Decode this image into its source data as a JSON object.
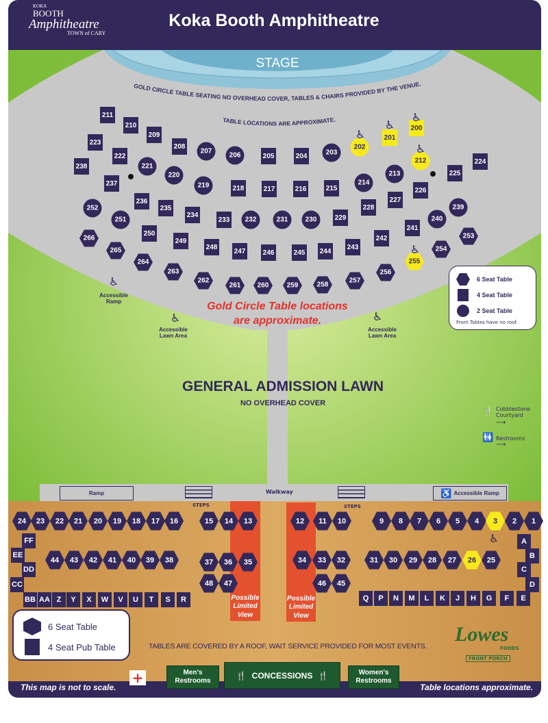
{
  "header": {
    "title": "Koka Booth Amphitheatre",
    "logo": {
      "koka": "KOKA",
      "booth": "BOOTH",
      "amph": "Amphitheatre",
      "town": "TOWN of CARY"
    }
  },
  "colors": {
    "navy": "#33285a",
    "accessible_yellow": "#f7ea1c",
    "lawn_green": "#8cc63f",
    "seating_gray": "#c8c8c8",
    "stage_blue": "#8fc3d8",
    "deck_wood": "#d8a35a",
    "limited_view_red": "#e4512f",
    "concessions_green": "#1f5a2f"
  },
  "stage": {
    "label": "STAGE"
  },
  "gold_circle": {
    "arc_text": "GOLD CIRCLE TABLE SEATING NO OVERHEAD COVER, TABLES & CHAIRS PROVIDED BY THE VENUE.",
    "arc_text2": "TABLE LOCATIONS ARE APPROXIMATE.",
    "notice_line1": "Gold Circle Table locations",
    "notice_line2": "are approximate.",
    "accessible_ramp": "Accessible Ramp",
    "accessible_lawn_left": "Accessible Lawn Area",
    "accessible_lawn_right": "Accessible Lawn Area",
    "tables": [
      {
        "label": "211",
        "shape": "square"
      },
      {
        "label": "210",
        "shape": "square"
      },
      {
        "label": "209",
        "shape": "square"
      },
      {
        "label": "223",
        "shape": "square"
      },
      {
        "label": "208",
        "shape": "square"
      },
      {
        "label": "207",
        "shape": "circle"
      },
      {
        "label": "206",
        "shape": "circle"
      },
      {
        "label": "205",
        "shape": "square"
      },
      {
        "label": "204",
        "shape": "square"
      },
      {
        "label": "203",
        "shape": "circle"
      },
      {
        "label": "202",
        "shape": "circle",
        "accessible": true
      },
      {
        "label": "201",
        "shape": "square",
        "accessible": true
      },
      {
        "label": "200",
        "shape": "square",
        "accessible": true
      },
      {
        "label": "212",
        "shape": "circle",
        "accessible": true
      },
      {
        "label": "224",
        "shape": "square"
      },
      {
        "label": "222",
        "shape": "square"
      },
      {
        "label": "238",
        "shape": "square"
      },
      {
        "label": "221",
        "shape": "circle"
      },
      {
        "label": "220",
        "shape": "circle"
      },
      {
        "label": "237",
        "shape": "square"
      },
      {
        "label": "219",
        "shape": "circle"
      },
      {
        "label": "218",
        "shape": "square"
      },
      {
        "label": "217",
        "shape": "square"
      },
      {
        "label": "216",
        "shape": "square"
      },
      {
        "label": "215",
        "shape": "square"
      },
      {
        "label": "214",
        "shape": "circle"
      },
      {
        "label": "213",
        "shape": "circle"
      },
      {
        "label": "225",
        "shape": "square"
      },
      {
        "label": "226",
        "shape": "square"
      },
      {
        "label": "227",
        "shape": "square"
      },
      {
        "label": "228",
        "shape": "square"
      },
      {
        "label": "236",
        "shape": "square"
      },
      {
        "label": "252",
        "shape": "circle"
      },
      {
        "label": "235",
        "shape": "square"
      },
      {
        "label": "234",
        "shape": "square"
      },
      {
        "label": "233",
        "shape": "square"
      },
      {
        "label": "232",
        "shape": "circle"
      },
      {
        "label": "231",
        "shape": "circle"
      },
      {
        "label": "230",
        "shape": "circle"
      },
      {
        "label": "229",
        "shape": "square"
      },
      {
        "label": "239",
        "shape": "circle"
      },
      {
        "label": "240",
        "shape": "circle"
      },
      {
        "label": "241",
        "shape": "square"
      },
      {
        "label": "251",
        "shape": "circle"
      },
      {
        "label": "250",
        "shape": "square"
      },
      {
        "label": "249",
        "shape": "square"
      },
      {
        "label": "248",
        "shape": "square"
      },
      {
        "label": "247",
        "shape": "square"
      },
      {
        "label": "246",
        "shape": "square"
      },
      {
        "label": "245",
        "shape": "square"
      },
      {
        "label": "244",
        "shape": "square"
      },
      {
        "label": "243",
        "shape": "square"
      },
      {
        "label": "242",
        "shape": "square"
      },
      {
        "label": "253",
        "shape": "hex"
      },
      {
        "label": "266",
        "shape": "hex"
      },
      {
        "label": "265",
        "shape": "hex"
      },
      {
        "label": "264",
        "shape": "hex"
      },
      {
        "label": "263",
        "shape": "hex"
      },
      {
        "label": "262",
        "shape": "hex"
      },
      {
        "label": "261",
        "shape": "hex"
      },
      {
        "label": "260",
        "shape": "hex"
      },
      {
        "label": "259",
        "shape": "hex"
      },
      {
        "label": "258",
        "shape": "hex"
      },
      {
        "label": "257",
        "shape": "hex"
      },
      {
        "label": "256",
        "shape": "hex"
      },
      {
        "label": "255",
        "shape": "hex",
        "accessible": true
      },
      {
        "label": "254",
        "shape": "hex"
      }
    ],
    "legend": {
      "six": "6 Seat Table",
      "four": "4 Seat Table",
      "two": "2 Seat Table",
      "note": "Front Tables have no roof."
    }
  },
  "lawn": {
    "title": "GENERAL ADMISSION LAWN",
    "subtitle": "NO OVERHEAD COVER",
    "cobblestone": "Cobblestone Courtyard",
    "restrooms": "Restrooms"
  },
  "walkway": {
    "label": "Walkway",
    "ramp": "Ramp",
    "accessible_ramp": "Accessible Ramp",
    "steps_left": "STEPS",
    "steps_right": "STEPS"
  },
  "covered": {
    "limited_view": "Possible Limited View",
    "tables": [
      {
        "label": "24",
        "shape": "hex"
      },
      {
        "label": "23",
        "shape": "hex"
      },
      {
        "label": "22",
        "shape": "hex"
      },
      {
        "label": "21",
        "shape": "hex"
      },
      {
        "label": "20",
        "shape": "hex"
      },
      {
        "label": "19",
        "shape": "hex"
      },
      {
        "label": "18",
        "shape": "hex"
      },
      {
        "label": "17",
        "shape": "hex"
      },
      {
        "label": "16",
        "shape": "hex"
      },
      {
        "label": "15",
        "shape": "hex"
      },
      {
        "label": "14",
        "shape": "hex"
      },
      {
        "label": "13",
        "shape": "hex"
      },
      {
        "label": "12",
        "shape": "hex"
      },
      {
        "label": "11",
        "shape": "hex"
      },
      {
        "label": "10",
        "shape": "hex"
      },
      {
        "label": "9",
        "shape": "hex"
      },
      {
        "label": "8",
        "shape": "hex"
      },
      {
        "label": "7",
        "shape": "hex"
      },
      {
        "label": "6",
        "shape": "hex"
      },
      {
        "label": "5",
        "shape": "hex"
      },
      {
        "label": "4",
        "shape": "hex"
      },
      {
        "label": "3",
        "shape": "hex",
        "accessible": true
      },
      {
        "label": "2",
        "shape": "hex"
      },
      {
        "label": "1",
        "shape": "hex"
      },
      {
        "label": "44",
        "shape": "hex"
      },
      {
        "label": "43",
        "shape": "hex"
      },
      {
        "label": "42",
        "shape": "hex"
      },
      {
        "label": "41",
        "shape": "hex"
      },
      {
        "label": "40",
        "shape": "hex"
      },
      {
        "label": "39",
        "shape": "hex"
      },
      {
        "label": "38",
        "shape": "hex"
      },
      {
        "label": "37",
        "shape": "hex"
      },
      {
        "label": "36",
        "shape": "hex"
      },
      {
        "label": "35",
        "shape": "hex"
      },
      {
        "label": "34",
        "shape": "hex"
      },
      {
        "label": "33",
        "shape": "hex"
      },
      {
        "label": "32",
        "shape": "hex"
      },
      {
        "label": "31",
        "shape": "hex"
      },
      {
        "label": "30",
        "shape": "hex"
      },
      {
        "label": "29",
        "shape": "hex"
      },
      {
        "label": "28",
        "shape": "hex"
      },
      {
        "label": "27",
        "shape": "hex"
      },
      {
        "label": "26",
        "shape": "hex",
        "accessible": true
      },
      {
        "label": "25",
        "shape": "hex"
      },
      {
        "label": "48",
        "shape": "hex"
      },
      {
        "label": "47",
        "shape": "hex"
      },
      {
        "label": "46",
        "shape": "hex"
      },
      {
        "label": "45",
        "shape": "hex"
      },
      {
        "label": "FF",
        "shape": "square"
      },
      {
        "label": "EE",
        "shape": "square"
      },
      {
        "label": "DD",
        "shape": "square"
      },
      {
        "label": "CC",
        "shape": "square"
      },
      {
        "label": "BB",
        "shape": "square"
      },
      {
        "label": "AA",
        "shape": "square"
      },
      {
        "label": "Z",
        "shape": "square"
      },
      {
        "label": "Y",
        "shape": "square"
      },
      {
        "label": "X",
        "shape": "square"
      },
      {
        "label": "W",
        "shape": "square"
      },
      {
        "label": "V",
        "shape": "square"
      },
      {
        "label": "U",
        "shape": "square"
      },
      {
        "label": "T",
        "shape": "square"
      },
      {
        "label": "S",
        "shape": "square"
      },
      {
        "label": "R",
        "shape": "square"
      },
      {
        "label": "Q",
        "shape": "square"
      },
      {
        "label": "P",
        "shape": "square"
      },
      {
        "label": "N",
        "shape": "square"
      },
      {
        "label": "M",
        "shape": "square"
      },
      {
        "label": "L",
        "shape": "square"
      },
      {
        "label": "K",
        "shape": "square"
      },
      {
        "label": "J",
        "shape": "square"
      },
      {
        "label": "H",
        "shape": "square"
      },
      {
        "label": "G",
        "shape": "square"
      },
      {
        "label": "F",
        "shape": "square"
      },
      {
        "label": "E",
        "shape": "square"
      },
      {
        "label": "A",
        "shape": "square"
      },
      {
        "label": "B",
        "shape": "square"
      },
      {
        "label": "C",
        "shape": "square"
      },
      {
        "label": "D",
        "shape": "square"
      }
    ],
    "legend": {
      "six": "6 Seat Table",
      "four": "4 Seat Pub Table"
    },
    "roof_note": "TABLES ARE COVERED BY A ROOF, WAIT SERVICE PROVIDED FOR MOST EVENTS.",
    "sponsor": {
      "name": "Lowes",
      "sub": "FOODS",
      "porch": "FRONT PORCH"
    },
    "mens": "Men's Restrooms",
    "concessions": "CONCESSIONS",
    "womens": "Women's Restrooms"
  },
  "footer": {
    "left": "This map is not to scale.",
    "right": "Table locations approximate."
  },
  "icons": {
    "wheelchair": "wheelchair-icon",
    "first_aid": "first-aid-cross-icon",
    "food_drink": "fork-knife-cup-icon",
    "restroom": "restroom-icon"
  }
}
